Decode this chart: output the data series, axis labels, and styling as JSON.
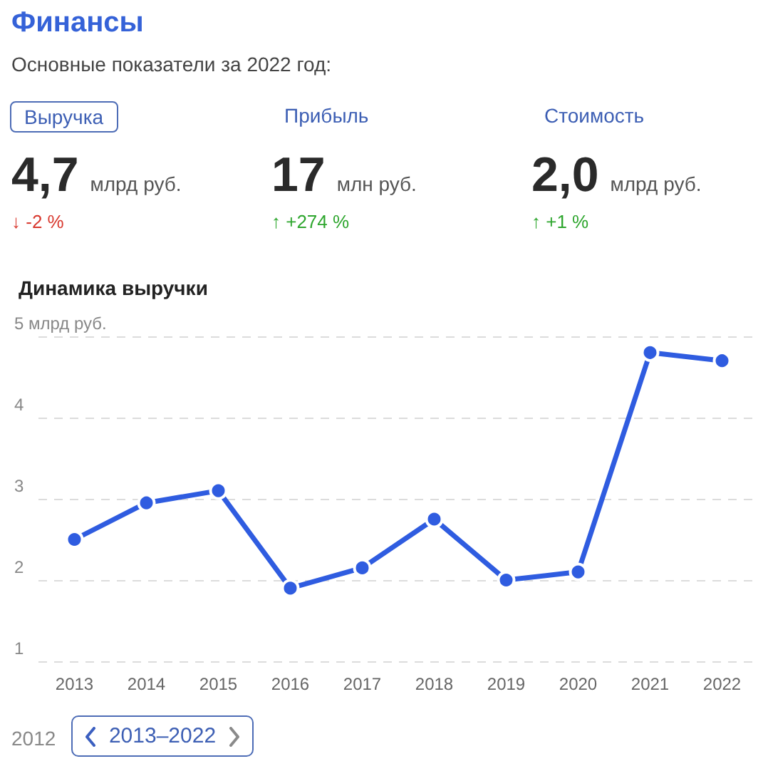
{
  "chart_data": [
    {
      "type": "other",
      "title": "Финансы",
      "subtitle": "Основные показатели за 2022 год:",
      "annotations": [
        "Выручка",
        "4,7",
        "млрд руб.",
        "↓ -2 %",
        "Прибыль",
        "17",
        "млн руб.",
        "↑ +274 %",
        "Стоимость",
        "2,0",
        "млрд руб.",
        "↑ +1 %"
      ],
      "colors": [
        "#d8382e",
        "#2ea62e",
        "#2ea62e"
      ]
    },
    {
      "type": "line",
      "title": "Динамика выручки",
      "categories": [
        "2013",
        "2014",
        "2015",
        "2016",
        "2017",
        "2018",
        "2019",
        "2020",
        "2021",
        "2022"
      ],
      "series": [
        {
          "color": "#2f5ce0",
          "values": [
            2.5,
            2.95,
            3.1,
            1.9,
            2.15,
            2.75,
            2.0,
            2.1,
            4.8,
            4.7
          ]
        }
      ],
      "ylim": [
        1,
        5
      ],
      "yticks": [
        1,
        2,
        3,
        4,
        {
          "value": 5,
          "label": "5 млрд руб."
        }
      ],
      "grid": "y",
      "marker": "circle",
      "line_style": "solid",
      "annotations": [
        "2012",
        "2013–2022"
      ]
    }
  ]
}
